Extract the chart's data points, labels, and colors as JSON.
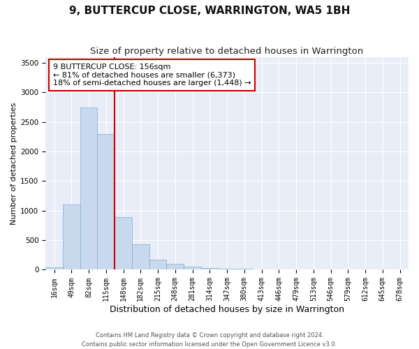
{
  "title": "9, BUTTERCUP CLOSE, WARRINGTON, WA5 1BH",
  "subtitle": "Size of property relative to detached houses in Warrington",
  "xlabel": "Distribution of detached houses by size in Warrington",
  "ylabel": "Number of detached properties",
  "bins": [
    "16sqm",
    "49sqm",
    "82sqm",
    "115sqm",
    "148sqm",
    "182sqm",
    "215sqm",
    "248sqm",
    "281sqm",
    "314sqm",
    "347sqm",
    "380sqm",
    "413sqm",
    "446sqm",
    "479sqm",
    "513sqm",
    "546sqm",
    "579sqm",
    "612sqm",
    "645sqm",
    "678sqm"
  ],
  "values": [
    45,
    1100,
    2750,
    2300,
    890,
    430,
    175,
    100,
    55,
    30,
    20,
    15,
    5,
    3,
    2,
    1,
    0,
    0,
    0,
    0,
    0
  ],
  "bar_color": "#c8d9ee",
  "bar_edge_color": "#7bafd4",
  "vline_x_idx": 4,
  "vline_color": "#cc0000",
  "annotation_text": "9 BUTTERCUP CLOSE: 156sqm\n← 81% of detached houses are smaller (6,373)\n18% of semi-detached houses are larger (1,448) →",
  "annotation_box_color": "#ffffff",
  "annotation_box_edge": "#cc0000",
  "footer_text": "Contains HM Land Registry data © Crown copyright and database right 2024.\nContains public sector information licensed under the Open Government Licence v3.0.",
  "ylim": [
    0,
    3600
  ],
  "yticks": [
    0,
    500,
    1000,
    1500,
    2000,
    2500,
    3000,
    3500
  ],
  "bg_color": "#e8edf7",
  "grid_color": "#ffffff",
  "fig_bg": "#ffffff",
  "title_fontsize": 11,
  "subtitle_fontsize": 9.5,
  "tick_fontsize": 7,
  "ylabel_fontsize": 8,
  "xlabel_fontsize": 9
}
